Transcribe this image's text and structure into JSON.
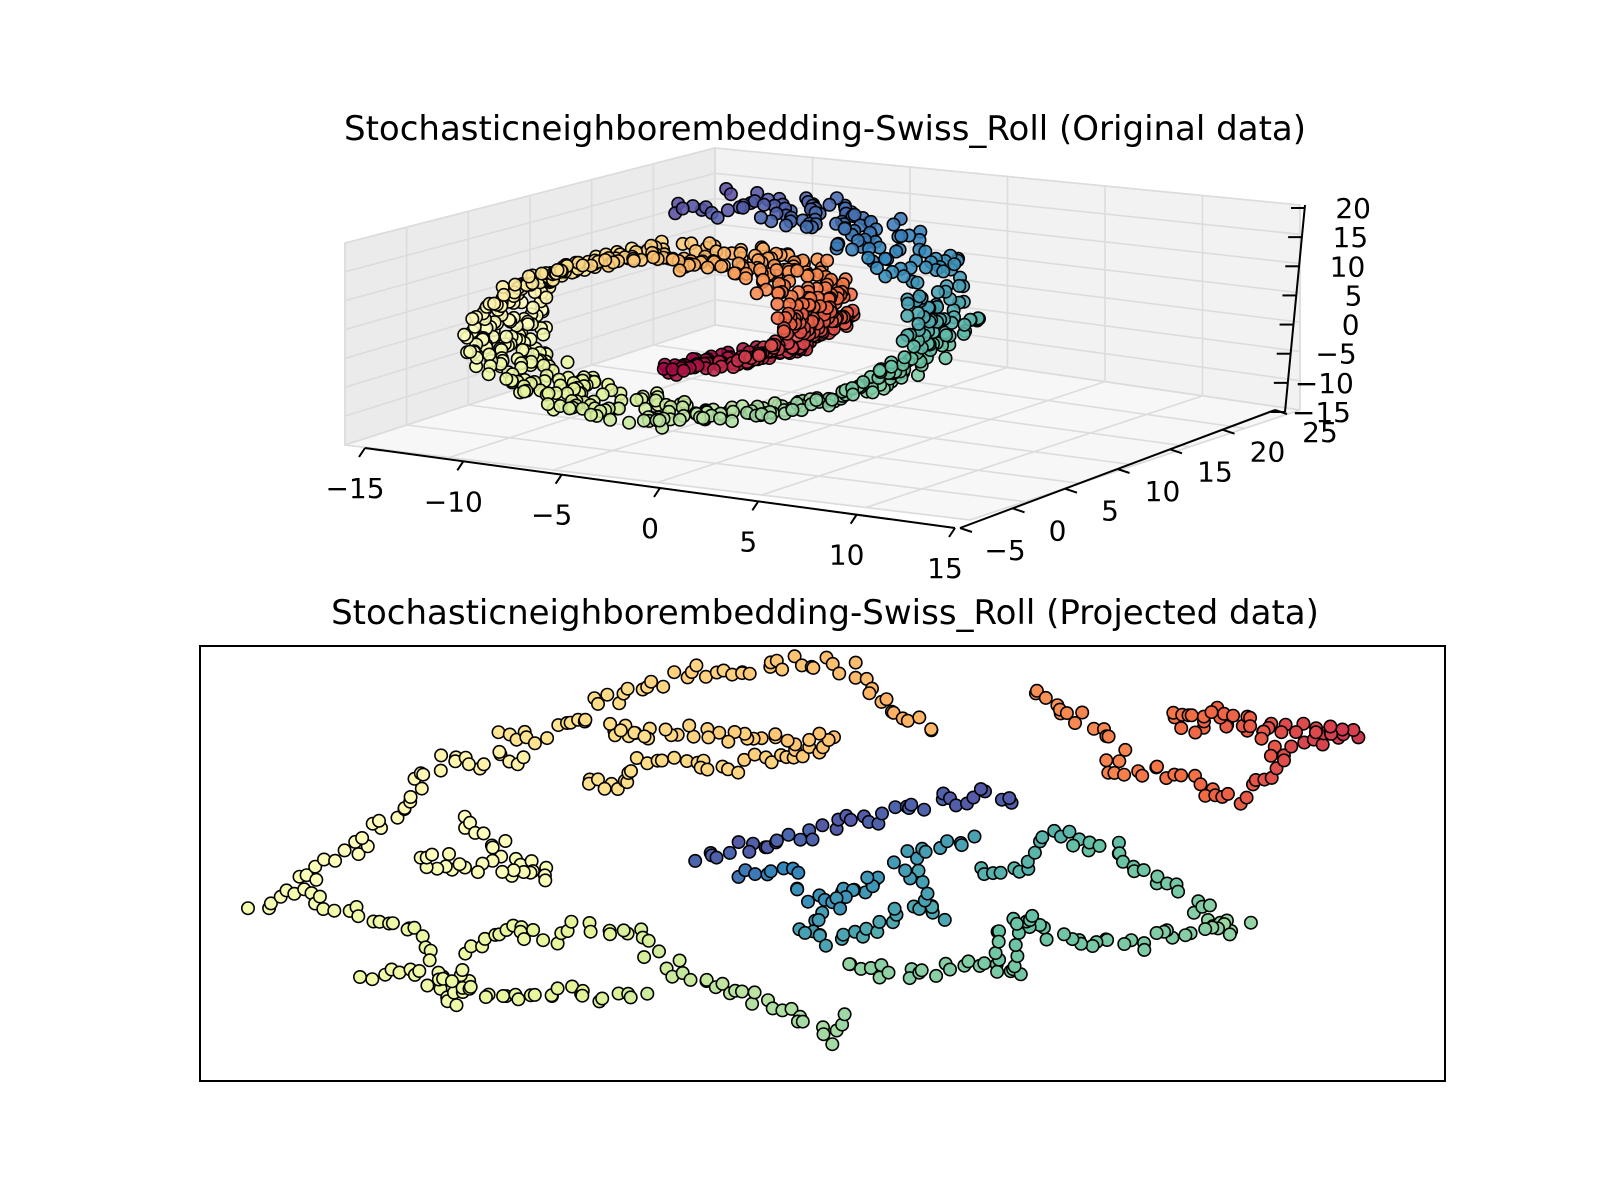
{
  "figure": {
    "titles": {
      "original": "Stochasticneighborembedding-Swiss_Roll (Original data)",
      "projected": "Stochasticneighborembedding-Swiss_Roll (Projected data)"
    }
  },
  "chart_data": [
    {
      "type": "scatter",
      "projection": "3d",
      "title": "Stochasticneighborembedding-Swiss_Roll (Original data)",
      "colormap": "Spectral",
      "axes": {
        "x": {
          "ticks": [
            "−15",
            "−10",
            "−5",
            "0",
            "5",
            "10",
            "15"
          ],
          "range": [
            -15,
            15
          ]
        },
        "y": {
          "ticks": [
            "−5",
            "0",
            "5",
            "10",
            "15",
            "20",
            "25"
          ],
          "range": [
            -5,
            25
          ]
        },
        "z": {
          "ticks": [
            "20",
            "15",
            "10",
            "5",
            "0",
            "−5",
            "−10",
            "−15"
          ],
          "range": [
            -15,
            20
          ]
        }
      },
      "grid": true,
      "marker_edge": "#000000"
    },
    {
      "type": "scatter",
      "projection": "2d",
      "title": "Stochasticneighborembedding-Swiss_Roll (Projected data)",
      "colormap": "Spectral",
      "axes_ticks_visible": false,
      "marker_edge": "#000000"
    }
  ],
  "colors": {
    "spectral": [
      "#9e0142",
      "#d53e4f",
      "#f46d43",
      "#fdae61",
      "#fee08b",
      "#ffffbf",
      "#e6f598",
      "#abdda4",
      "#66c2a5",
      "#3288bd",
      "#5e4fa2"
    ]
  }
}
